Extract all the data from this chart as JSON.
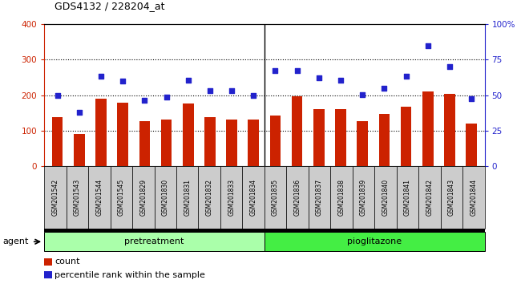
{
  "title": "GDS4132 / 228204_at",
  "categories": [
    "GSM201542",
    "GSM201543",
    "GSM201544",
    "GSM201545",
    "GSM201829",
    "GSM201830",
    "GSM201831",
    "GSM201832",
    "GSM201833",
    "GSM201834",
    "GSM201835",
    "GSM201836",
    "GSM201837",
    "GSM201838",
    "GSM201839",
    "GSM201840",
    "GSM201841",
    "GSM201842",
    "GSM201843",
    "GSM201844"
  ],
  "counts": [
    138,
    90,
    190,
    178,
    127,
    132,
    176,
    137,
    131,
    132,
    142,
    197,
    160,
    160,
    126,
    146,
    167,
    210,
    203,
    120
  ],
  "percentile": [
    200,
    152,
    253,
    240,
    185,
    195,
    243,
    213,
    213,
    200,
    268,
    270,
    248,
    243,
    202,
    220,
    253,
    340,
    280,
    190
  ],
  "bar_color": "#cc2200",
  "dot_color": "#2222cc",
  "ytick_labels_left": [
    "0",
    "100",
    "200",
    "300",
    "400"
  ],
  "ytick_labels_right": [
    "0",
    "25",
    "50",
    "75",
    "100%"
  ],
  "group1_n": 10,
  "group2_n": 10,
  "group1_color": "#aaffaa",
  "group2_color": "#44ee44",
  "agent_label": "agent",
  "bar_width": 0.5,
  "legend_count_label": "count",
  "legend_pct_label": "percentile rank within the sample",
  "pretreatment_label": "pretreatment",
  "pioglitazone_label": "pioglitazone",
  "cell_bg": "#cccccc",
  "plot_bg": "#ffffff"
}
